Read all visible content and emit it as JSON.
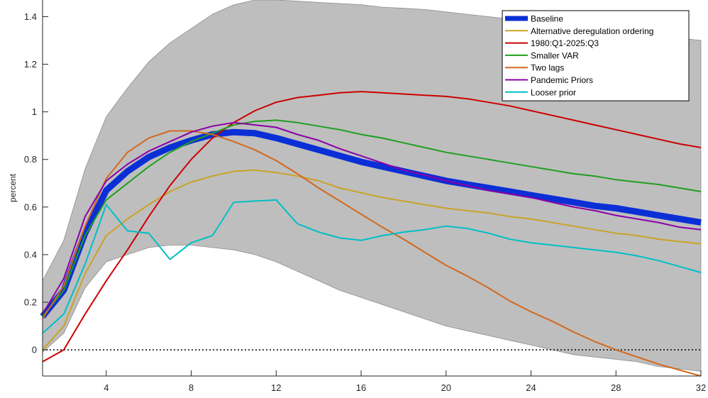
{
  "chart_data": {
    "type": "line",
    "title": "",
    "xlabel": "",
    "ylabel": "percent",
    "xlim": [
      1,
      32
    ],
    "ylim": [
      -0.11,
      1.47
    ],
    "xticks": [
      4,
      8,
      12,
      16,
      20,
      24,
      28,
      32
    ],
    "yticks": [
      0,
      0.2,
      0.4,
      0.6,
      0.8,
      1,
      1.2,
      1.4
    ],
    "xtick_labels": [
      "4",
      "8",
      "12",
      "16",
      "20",
      "24",
      "28",
      "32"
    ],
    "ytick_labels": [
      "0",
      "0.2",
      "0.4",
      "0.6",
      "0.8",
      "1",
      "1.2",
      "1.4"
    ],
    "grid": false,
    "legend_position": "top-right",
    "x": [
      1,
      2,
      3,
      4,
      5,
      6,
      7,
      8,
      9,
      10,
      11,
      12,
      13,
      14,
      15,
      16,
      17,
      18,
      19,
      20,
      21,
      22,
      23,
      24,
      25,
      26,
      27,
      28,
      29,
      30,
      31,
      32
    ],
    "band": {
      "color": "#bebebe",
      "upper": [
        0.29,
        0.46,
        0.76,
        0.98,
        1.1,
        1.21,
        1.29,
        1.35,
        1.41,
        1.45,
        1.47,
        1.47,
        1.465,
        1.46,
        1.455,
        1.45,
        1.44,
        1.435,
        1.43,
        1.42,
        1.41,
        1.4,
        1.39,
        1.38,
        1.37,
        1.36,
        1.35,
        1.34,
        1.33,
        1.32,
        1.31,
        1.3
      ],
      "lower": [
        -0.01,
        0.07,
        0.26,
        0.37,
        0.4,
        0.43,
        0.44,
        0.44,
        0.43,
        0.42,
        0.4,
        0.37,
        0.33,
        0.29,
        0.25,
        0.22,
        0.19,
        0.16,
        0.13,
        0.1,
        0.08,
        0.06,
        0.04,
        0.02,
        0.0,
        -0.02,
        -0.03,
        -0.04,
        -0.05,
        -0.07,
        -0.08,
        -0.09
      ]
    },
    "zero_line": 0,
    "series": [
      {
        "name": "Baseline",
        "color": "#0a2fd6",
        "width": 9,
        "values": [
          0.14,
          0.25,
          0.49,
          0.67,
          0.75,
          0.81,
          0.85,
          0.88,
          0.905,
          0.915,
          0.91,
          0.89,
          0.865,
          0.84,
          0.815,
          0.79,
          0.77,
          0.75,
          0.73,
          0.71,
          0.695,
          0.68,
          0.665,
          0.65,
          0.635,
          0.62,
          0.605,
          0.595,
          0.58,
          0.565,
          0.55,
          0.535
        ]
      },
      {
        "name": "Alternative deregulation ordering",
        "color": "#c9a227",
        "width": 2,
        "values": [
          0.0,
          0.1,
          0.32,
          0.48,
          0.55,
          0.61,
          0.665,
          0.705,
          0.73,
          0.75,
          0.755,
          0.745,
          0.73,
          0.71,
          0.68,
          0.66,
          0.64,
          0.625,
          0.61,
          0.595,
          0.585,
          0.575,
          0.56,
          0.55,
          0.535,
          0.52,
          0.505,
          0.49,
          0.48,
          0.465,
          0.455,
          0.445
        ]
      },
      {
        "name": "1980:Q1-2025:Q3",
        "color": "#cc0000",
        "width": 2,
        "values": [
          -0.05,
          0.0,
          0.15,
          0.29,
          0.42,
          0.56,
          0.69,
          0.8,
          0.89,
          0.955,
          1.005,
          1.04,
          1.06,
          1.07,
          1.08,
          1.085,
          1.08,
          1.075,
          1.07,
          1.065,
          1.055,
          1.04,
          1.025,
          1.005,
          0.985,
          0.965,
          0.945,
          0.925,
          0.905,
          0.885,
          0.865,
          0.85
        ]
      },
      {
        "name": "Smaller VAR",
        "color": "#1f9f1f",
        "width": 2,
        "values": [
          0.14,
          0.25,
          0.48,
          0.63,
          0.7,
          0.77,
          0.83,
          0.875,
          0.91,
          0.945,
          0.96,
          0.965,
          0.955,
          0.94,
          0.925,
          0.905,
          0.89,
          0.87,
          0.85,
          0.83,
          0.815,
          0.8,
          0.785,
          0.77,
          0.755,
          0.74,
          0.73,
          0.715,
          0.705,
          0.695,
          0.68,
          0.665
        ]
      },
      {
        "name": "Two lags",
        "color": "#d2691e",
        "width": 2,
        "values": [
          0.13,
          0.27,
          0.52,
          0.72,
          0.83,
          0.89,
          0.92,
          0.92,
          0.905,
          0.875,
          0.84,
          0.795,
          0.74,
          0.68,
          0.625,
          0.57,
          0.515,
          0.465,
          0.41,
          0.355,
          0.31,
          0.26,
          0.205,
          0.16,
          0.12,
          0.075,
          0.035,
          0.0,
          -0.03,
          -0.06,
          -0.085,
          -0.11
        ]
      },
      {
        "name": "Pandemic Priors",
        "color": "#8b00a8",
        "width": 2,
        "values": [
          0.15,
          0.3,
          0.56,
          0.71,
          0.78,
          0.835,
          0.875,
          0.915,
          0.94,
          0.955,
          0.945,
          0.935,
          0.905,
          0.88,
          0.845,
          0.815,
          0.785,
          0.755,
          0.735,
          0.71,
          0.69,
          0.67,
          0.655,
          0.64,
          0.62,
          0.6,
          0.585,
          0.565,
          0.55,
          0.535,
          0.515,
          0.505
        ]
      },
      {
        "name": "Looser prior",
        "color": "#00bfc4",
        "width": 2,
        "values": [
          0.07,
          0.15,
          0.36,
          0.61,
          0.5,
          0.49,
          0.38,
          0.45,
          0.48,
          0.62,
          0.625,
          0.63,
          0.53,
          0.495,
          0.47,
          0.46,
          0.48,
          0.495,
          0.505,
          0.52,
          0.51,
          0.49,
          0.465,
          0.45,
          0.44,
          0.43,
          0.42,
          0.41,
          0.395,
          0.375,
          0.35,
          0.325
        ]
      }
    ]
  }
}
